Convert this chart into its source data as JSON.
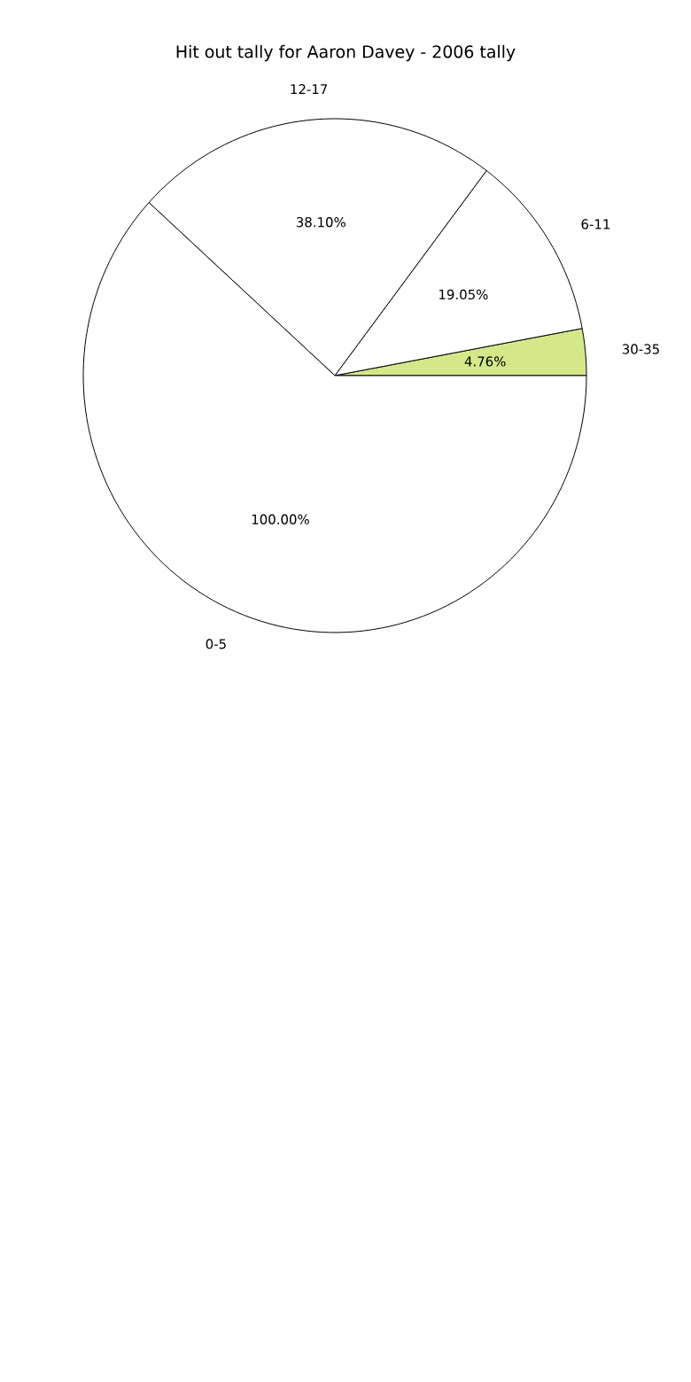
{
  "chart_data": {
    "type": "pie",
    "title": "Hit out tally for Aaron Davey - 2006 tally",
    "categories": [
      "30-35",
      "6-11",
      "12-17",
      "0-5"
    ],
    "values": [
      4.76,
      19.05,
      38.1,
      100.0
    ],
    "value_labels": [
      "4.76%",
      "19.05%",
      "38.10%",
      "100.00%"
    ],
    "colors": [
      "#d4e88a",
      "#ffffff",
      "#ffffff",
      "#ffffff"
    ]
  }
}
